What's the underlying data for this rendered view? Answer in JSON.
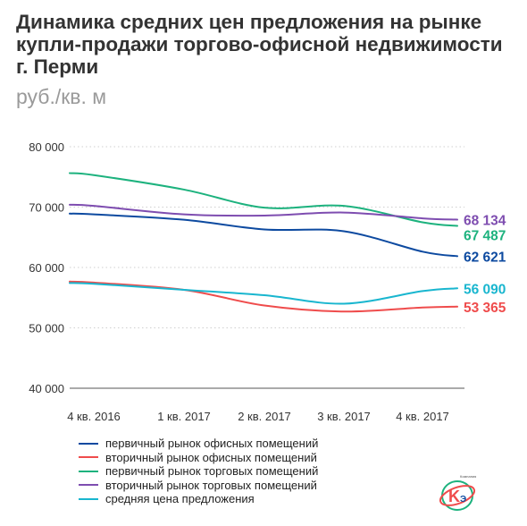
{
  "title": "Динамика средних цен предложения на рынке купли-продажи торгово-офисной недвижимости г. Перми",
  "subtitle": "руб./кв. м",
  "legend_label": "Компания",
  "colors": {
    "primary_office": "#0d4aa0",
    "secondary_office": "#ef4c4c",
    "primary_retail": "#1db27e",
    "secondary_retail": "#7e4db0",
    "average": "#19b6cf"
  },
  "chart_data": {
    "type": "line",
    "title": "Динамика средних цен предложения на рынке купли-продажи торгово-офисной недвижимости г. Перми",
    "ylabel": "руб./кв. м",
    "categories": [
      "4 кв. 2016",
      "1 кв. 2017",
      "2 кв. 2017",
      "3 кв. 2017",
      "4 кв. 2017"
    ],
    "yticks": [
      "40 000",
      "50 000",
      "60 000",
      "70 000",
      "80 000"
    ],
    "ylim": [
      40000,
      80000
    ],
    "grid": true,
    "legend_position": "bottom",
    "series": [
      {
        "name": "первичный рынок офисных помещений",
        "color": "#0d4aa0",
        "values": [
          68800,
          67900,
          66300,
          66000,
          62621
        ],
        "end_label": "62 621"
      },
      {
        "name": "вторичный рынок офисных помещений",
        "color": "#ef4c4c",
        "values": [
          57500,
          56300,
          53700,
          52700,
          53365
        ],
        "end_label": "53 365"
      },
      {
        "name": "первичный рынок торговых помещений",
        "color": "#1db27e",
        "values": [
          75300,
          72900,
          69900,
          70200,
          67487
        ],
        "end_label": "67 487"
      },
      {
        "name": "вторичный рынок торговых помещений",
        "color": "#7e4db0",
        "values": [
          70200,
          68800,
          68600,
          69100,
          68134
        ],
        "end_label": "68 134"
      },
      {
        "name": "средняя цена предложения",
        "color": "#19b6cf",
        "values": [
          57300,
          56300,
          55400,
          54000,
          56090
        ],
        "end_label": "56 090"
      }
    ]
  }
}
